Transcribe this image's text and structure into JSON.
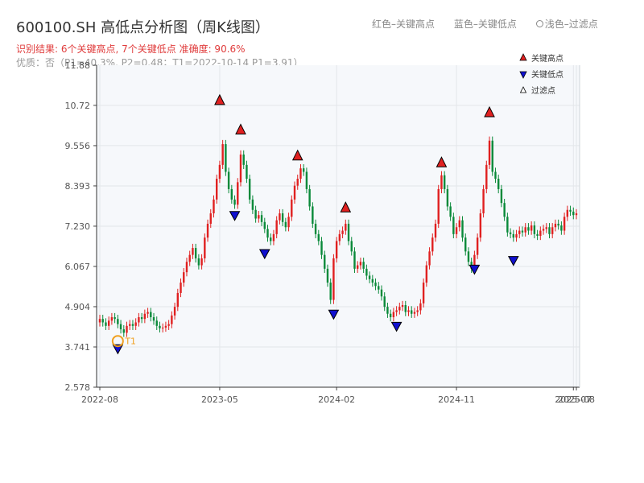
{
  "header": {
    "title": "600100.SH 高低点分析图（周K线图）",
    "summary": "识别结果: 6个关键高点, 7个关键低点  准确度: 90.6%",
    "quality": "优质：否（P1=40.3%, P2=0.48；T1=2022-10-14 P1=3.91）",
    "legend_red": "红色–关键高点",
    "legend_blue": "蓝色–关键低点",
    "legend_hollow": "浅色–过滤点"
  },
  "colors": {
    "up": "#e02020",
    "down": "#0a8a3a",
    "high_marker": "#e02020",
    "low_marker": "#1010d0",
    "t1_marker": "#f0a020",
    "plot_bg": "#f6f8fb",
    "grid": "#e3e6ea"
  },
  "chart_data": {
    "type": "candlestick",
    "y_ticks": [
      "2.578",
      "3.741",
      "4.904",
      "6.067",
      "7.230",
      "8.393",
      "9.556",
      "10.72",
      "11.88"
    ],
    "ylim": [
      2.578,
      11.88
    ],
    "x_ticks": [
      {
        "label": "2022-08",
        "index": 0
      },
      {
        "label": "2023-05",
        "index": 40
      },
      {
        "label": "2024-02",
        "index": 79
      },
      {
        "label": "2024-11",
        "index": 119
      },
      {
        "label": "2025-07",
        "index": 158
      },
      {
        "label": "2025-08",
        "index": 159
      }
    ],
    "series_legend": [
      {
        "name": "关键高点",
        "marker": "up-triangle"
      },
      {
        "name": "关键低点",
        "marker": "down-triangle"
      },
      {
        "name": "过滤点",
        "marker": "hollow-triangle"
      }
    ],
    "closes": [
      4.55,
      4.45,
      4.35,
      4.5,
      4.6,
      4.55,
      4.4,
      4.25,
      4.15,
      4.35,
      4.4,
      4.35,
      4.45,
      4.6,
      4.55,
      4.7,
      4.75,
      4.6,
      4.5,
      4.35,
      4.28,
      4.3,
      4.35,
      4.4,
      4.65,
      4.9,
      5.3,
      5.6,
      5.9,
      6.2,
      6.4,
      6.6,
      6.3,
      6.1,
      6.3,
      6.9,
      7.3,
      7.6,
      8.0,
      8.6,
      9.0,
      9.6,
      8.8,
      8.3,
      8.0,
      7.85,
      8.5,
      9.3,
      9.0,
      8.6,
      8.0,
      7.7,
      7.45,
      7.55,
      7.35,
      7.15,
      6.9,
      6.8,
      7.0,
      7.4,
      7.6,
      7.35,
      7.2,
      7.5,
      8.0,
      8.4,
      8.6,
      8.9,
      8.8,
      8.3,
      7.8,
      7.3,
      7.0,
      6.8,
      6.4,
      6.0,
      5.6,
      5.1,
      6.3,
      6.8,
      7.0,
      7.1,
      7.3,
      6.8,
      6.5,
      6.0,
      6.1,
      6.2,
      6.0,
      5.8,
      5.7,
      5.6,
      5.5,
      5.4,
      5.2,
      4.9,
      4.7,
      4.6,
      4.75,
      4.8,
      4.9,
      4.95,
      4.75,
      4.8,
      4.7,
      4.75,
      4.8,
      5.0,
      5.6,
      6.1,
      6.5,
      6.9,
      7.3,
      8.3,
      8.7,
      8.3,
      7.8,
      7.5,
      7.0,
      7.2,
      7.4,
      6.9,
      6.5,
      6.2,
      6.0,
      6.4,
      6.9,
      7.6,
      8.3,
      9.0,
      9.7,
      8.8,
      8.6,
      8.3,
      7.9,
      7.5,
      7.05,
      7.0,
      6.9,
      7.0,
      7.1,
      7.05,
      7.2,
      7.1,
      7.25,
      7.0,
      6.95,
      7.1,
      7.15,
      7.2,
      7.0,
      7.2,
      7.3,
      7.25,
      7.1,
      7.5,
      7.7,
      7.65,
      7.55,
      7.6
    ],
    "key_highs": [
      {
        "index": 40,
        "value": 10.65
      },
      {
        "index": 47,
        "value": 9.8
      },
      {
        "index": 66,
        "value": 9.05
      },
      {
        "index": 82,
        "value": 7.55
      },
      {
        "index": 114,
        "value": 8.85
      },
      {
        "index": 130,
        "value": 10.3
      }
    ],
    "key_lows": [
      {
        "index": 45,
        "value": 7.7
      },
      {
        "index": 55,
        "value": 6.6
      },
      {
        "index": 78,
        "value": 4.85
      },
      {
        "index": 99,
        "value": 4.5
      },
      {
        "index": 125,
        "value": 6.15
      },
      {
        "index": 138,
        "value": 6.4
      },
      {
        "index": 6,
        "value": 3.85
      }
    ],
    "t1": {
      "index": 6,
      "value": 3.91,
      "label": "T1"
    }
  }
}
